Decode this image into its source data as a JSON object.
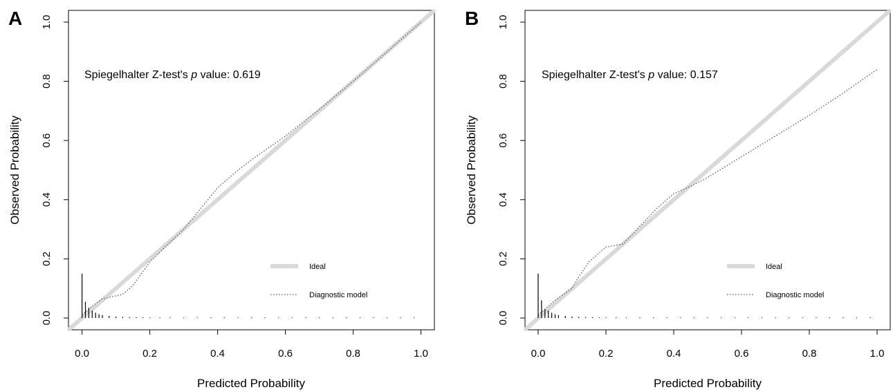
{
  "chart_data": [
    {
      "type": "line",
      "panel": "A",
      "xlabel": "Predicted Probability",
      "ylabel": "Observed Probability",
      "xlim": [
        0,
        1
      ],
      "ylim": [
        0,
        1
      ],
      "x_ticks": [
        "0.0",
        "0.2",
        "0.4",
        "0.6",
        "0.8",
        "1.0"
      ],
      "y_ticks": [
        "0.0",
        "0.2",
        "0.4",
        "0.6",
        "0.8",
        "1.0"
      ],
      "annotation": {
        "prefix": "Spiegelhalter Z-test's ",
        "p": "p",
        "suffix": " value: 0.619"
      },
      "legend": {
        "placement": "bottom-right",
        "entries": [
          "Ideal",
          "Diagnostic model"
        ]
      },
      "series": [
        {
          "name": "Ideal",
          "style": "solid-thick",
          "color": "#d9d9d9",
          "x": [
            0,
            1
          ],
          "y": [
            0,
            1
          ]
        },
        {
          "name": "Diagnostic model",
          "style": "dotted",
          "color": "#555555",
          "x": [
            0.0,
            0.03,
            0.06,
            0.1,
            0.12,
            0.15,
            0.2,
            0.25,
            0.3,
            0.35,
            0.4,
            0.45,
            0.5,
            0.6,
            0.7,
            0.8,
            0.9,
            1.0
          ],
          "y": [
            0.01,
            0.04,
            0.065,
            0.075,
            0.08,
            0.11,
            0.19,
            0.245,
            0.3,
            0.37,
            0.44,
            0.49,
            0.535,
            0.615,
            0.705,
            0.8,
            0.9,
            1.0
          ]
        }
      ],
      "histogram": {
        "x": [
          0.0,
          0.01,
          0.02,
          0.03,
          0.04,
          0.05,
          0.06,
          0.08,
          0.1,
          0.12,
          0.14,
          0.16,
          0.18,
          0.2,
          0.23,
          0.26,
          0.3,
          0.34,
          0.38,
          0.42,
          0.46,
          0.5,
          0.54,
          0.58,
          0.62,
          0.66,
          0.7,
          0.74,
          0.78,
          0.82,
          0.86,
          0.9,
          0.94,
          0.98
        ],
        "h": [
          0.15,
          0.055,
          0.035,
          0.025,
          0.018,
          0.013,
          0.01,
          0.007,
          0.005,
          0.004,
          0.003,
          0.003,
          0.002,
          0.002,
          0.002,
          0.002,
          0.002,
          0.002,
          0.002,
          0.002,
          0.002,
          0.002,
          0.002,
          0.002,
          0.002,
          0.002,
          0.002,
          0.002,
          0.002,
          0.002,
          0.002,
          0.002,
          0.002,
          0.002
        ]
      }
    },
    {
      "type": "line",
      "panel": "B",
      "xlabel": "Predicted Probability",
      "ylabel": "Observed Probability",
      "xlim": [
        0,
        1
      ],
      "ylim": [
        0,
        1
      ],
      "x_ticks": [
        "0.0",
        "0.2",
        "0.4",
        "0.6",
        "0.8",
        "1.0"
      ],
      "y_ticks": [
        "0.0",
        "0.2",
        "0.4",
        "0.6",
        "0.8",
        "1.0"
      ],
      "annotation": {
        "prefix": "Spiegelhalter Z-test's ",
        "p": "p",
        "suffix": " value: 0.157"
      },
      "legend": {
        "placement": "bottom-right",
        "entries": [
          "Ideal",
          "Diagnostic model"
        ]
      },
      "series": [
        {
          "name": "Ideal",
          "style": "solid-thick",
          "color": "#d9d9d9",
          "x": [
            0,
            1
          ],
          "y": [
            0,
            1
          ]
        },
        {
          "name": "Diagnostic model",
          "style": "dotted",
          "color": "#555555",
          "x": [
            0.0,
            0.02,
            0.05,
            0.1,
            0.12,
            0.15,
            0.18,
            0.2,
            0.25,
            0.3,
            0.35,
            0.4,
            0.45,
            0.5,
            0.6,
            0.7,
            0.8,
            0.9,
            1.0
          ],
          "y": [
            0.01,
            0.03,
            0.06,
            0.1,
            0.14,
            0.19,
            0.22,
            0.24,
            0.25,
            0.31,
            0.37,
            0.42,
            0.445,
            0.475,
            0.545,
            0.615,
            0.685,
            0.76,
            0.84
          ]
        }
      ],
      "histogram": {
        "x": [
          0.0,
          0.01,
          0.02,
          0.03,
          0.04,
          0.05,
          0.06,
          0.08,
          0.1,
          0.12,
          0.14,
          0.16,
          0.18,
          0.2,
          0.23,
          0.26,
          0.3,
          0.34,
          0.38,
          0.42,
          0.46,
          0.5,
          0.54,
          0.58,
          0.62,
          0.66,
          0.7,
          0.74,
          0.78,
          0.82,
          0.86,
          0.9,
          0.94,
          0.98
        ],
        "h": [
          0.15,
          0.06,
          0.03,
          0.025,
          0.018,
          0.013,
          0.01,
          0.007,
          0.005,
          0.004,
          0.003,
          0.003,
          0.002,
          0.002,
          0.002,
          0.002,
          0.002,
          0.002,
          0.002,
          0.002,
          0.002,
          0.002,
          0.002,
          0.002,
          0.002,
          0.002,
          0.002,
          0.002,
          0.002,
          0.002,
          0.002,
          0.002,
          0.002,
          0.002
        ]
      }
    }
  ]
}
